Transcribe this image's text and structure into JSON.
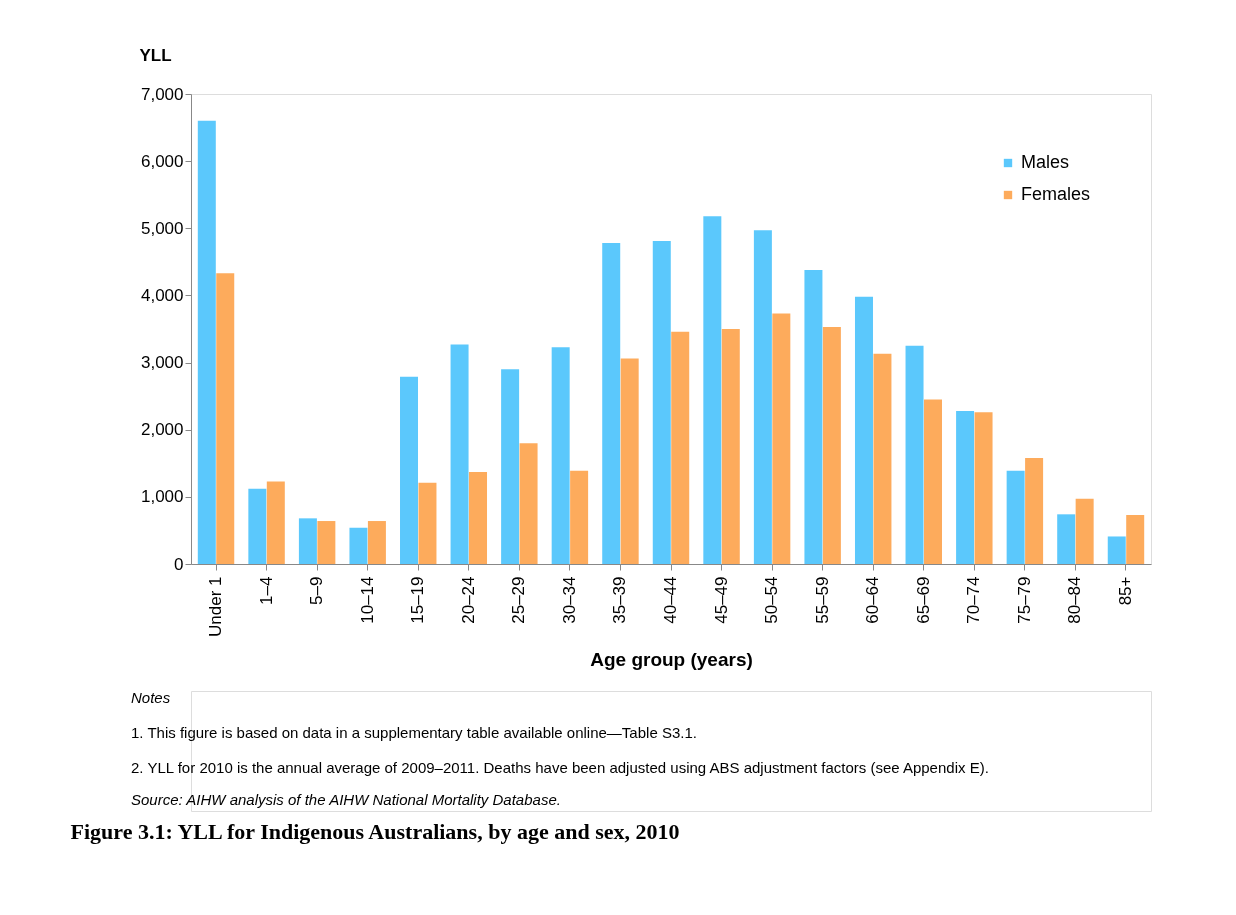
{
  "chart_data": {
    "type": "bar",
    "title": "Figure 3.1: YLL for Indigenous Australians, by age and sex, 2010",
    "xlabel": "Age group (years)",
    "ylabel": "YLL",
    "categories": [
      "Under 1",
      "1–4",
      "5–9",
      "10–14",
      "15–19",
      "20–24",
      "25–29",
      "30–34",
      "35–39",
      "40–44",
      "45–49",
      "50–54",
      "55–59",
      "60–64",
      "65–69",
      "70–74",
      "75–79",
      "80–84",
      "85+"
    ],
    "series": [
      {
        "name": "Males",
        "color": "#5bc8fc",
        "values": [
          6600,
          1120,
          680,
          540,
          2790,
          3270,
          2900,
          3230,
          4780,
          4810,
          5180,
          4970,
          4380,
          3980,
          3250,
          2280,
          1390,
          740,
          410
        ]
      },
      {
        "name": "Females",
        "color": "#fdab5c",
        "values": [
          4330,
          1230,
          640,
          640,
          1210,
          1370,
          1800,
          1390,
          3060,
          3460,
          3500,
          3730,
          3530,
          3130,
          2450,
          2260,
          1580,
          970,
          730
        ]
      }
    ],
    "ylim": [
      0,
      7000
    ],
    "yticks": [
      0,
      {
        "value": 1000,
        "label": "1,000"
      },
      {
        "value": 2000,
        "label": "2,000"
      },
      {
        "value": 3000,
        "label": "3,000"
      },
      {
        "value": 4000,
        "label": "4,000"
      },
      {
        "value": 5000,
        "label": "5,000"
      },
      {
        "value": 6000,
        "label": "6,000"
      },
      {
        "value": 7000,
        "label": "7,000"
      }
    ],
    "legend": "top right",
    "annotations": [
      "Notes",
      "1.      This figure is based on data in a supplementary table available online—Table S3.1.",
      "2.      YLL for 2010 is the annual average of 2009–2011. Deaths have been adjusted using ABS adjustment factors (see Appendix E).",
      "Source: AIHW analysis of the AIHW National Mortality Database."
    ]
  }
}
